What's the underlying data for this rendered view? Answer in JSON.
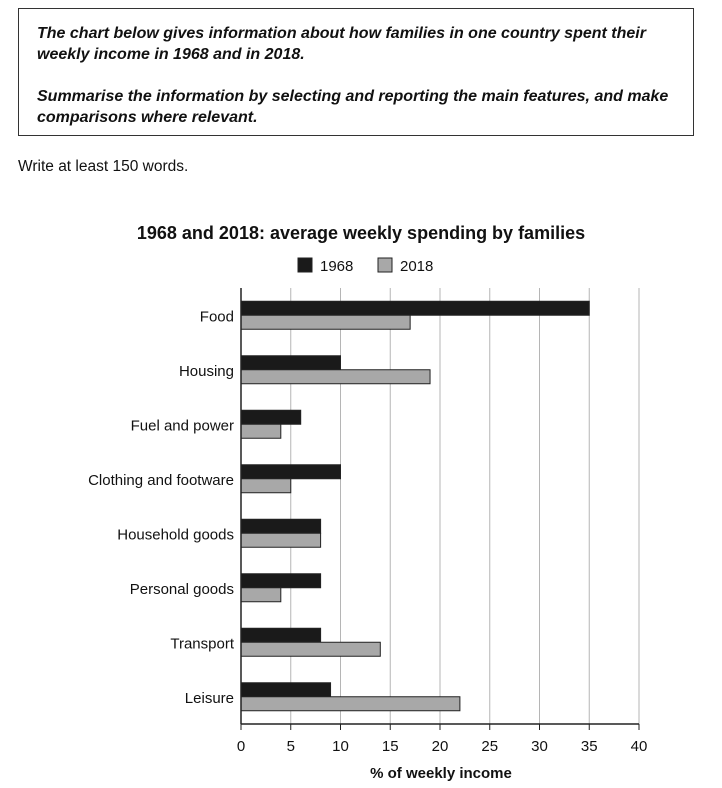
{
  "prompt": {
    "task": "The chart below gives information about how families in one country spent their weekly income in 1968 and in 2018.",
    "instruction": "Summarise the information by selecting and reporting the main features, and make comparisons where relevant."
  },
  "word_count_note": "Write at least 150 words.",
  "chart_data": {
    "type": "bar",
    "orientation": "horizontal",
    "title": "1968 and 2018: average weekly spending by families",
    "xlabel": "% of weekly income",
    "ylabel": "",
    "categories": [
      "Food",
      "Housing",
      "Fuel and power",
      "Clothing and footware",
      "Household goods",
      "Personal goods",
      "Transport",
      "Leisure"
    ],
    "series": [
      {
        "name": "1968",
        "color": "#1a1a1a",
        "values": [
          35,
          10,
          6,
          10,
          8,
          8,
          8,
          9
        ]
      },
      {
        "name": "2018",
        "color": "#a8a8a8",
        "values": [
          17,
          19,
          4,
          5,
          8,
          4,
          14,
          22
        ]
      }
    ],
    "xlim": [
      0,
      40
    ],
    "xticks": [
      0,
      5,
      10,
      15,
      20,
      25,
      30,
      35,
      40
    ],
    "grid": "vertical",
    "legend": "top-center"
  }
}
